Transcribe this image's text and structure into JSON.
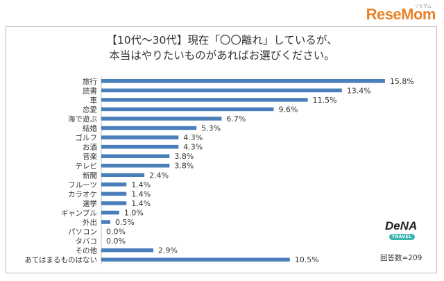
{
  "brand": {
    "site_logo": "ReseMom",
    "site_logo_small": "リセマム",
    "sponsor_logo": "DeNA",
    "sponsor_sub": "TRAVEL"
  },
  "sample_size": "回答数=209",
  "chart_data": {
    "type": "bar",
    "orientation": "horizontal",
    "title": "【10代～30代】現在「〇〇離れ」しているが、",
    "subtitle": "本当はやりたいものがあればお選びください。",
    "categories": [
      "旅行",
      "読書",
      "車",
      "恋愛",
      "海で遊ぶ",
      "結婚",
      "ゴルフ",
      "お酒",
      "音楽",
      "テレビ",
      "新聞",
      "フルーツ",
      "カラオケ",
      "選挙",
      "ギャンブル",
      "外出",
      "パソコン",
      "タバコ",
      "その他",
      "あてはまるものはない"
    ],
    "values": [
      15.8,
      13.4,
      11.5,
      9.6,
      6.7,
      5.3,
      4.3,
      4.3,
      3.8,
      3.8,
      2.4,
      1.4,
      1.4,
      1.4,
      1.0,
      0.5,
      0.0,
      0.0,
      2.9,
      10.5
    ],
    "value_labels": [
      "15.8%",
      "13.4%",
      "11.5%",
      "9.6%",
      "6.7%",
      "5.3%",
      "4.3%",
      "4.3%",
      "3.8%",
      "3.8%",
      "2.4%",
      "1.4%",
      "1.4%",
      "1.4%",
      "1.0%",
      "0.5%",
      "0.0%",
      "0.0%",
      "2.9%",
      "10.5%"
    ],
    "xlim": [
      0,
      17
    ],
    "grid": false,
    "legend": "none",
    "bar_color": "#4a7ebb"
  }
}
